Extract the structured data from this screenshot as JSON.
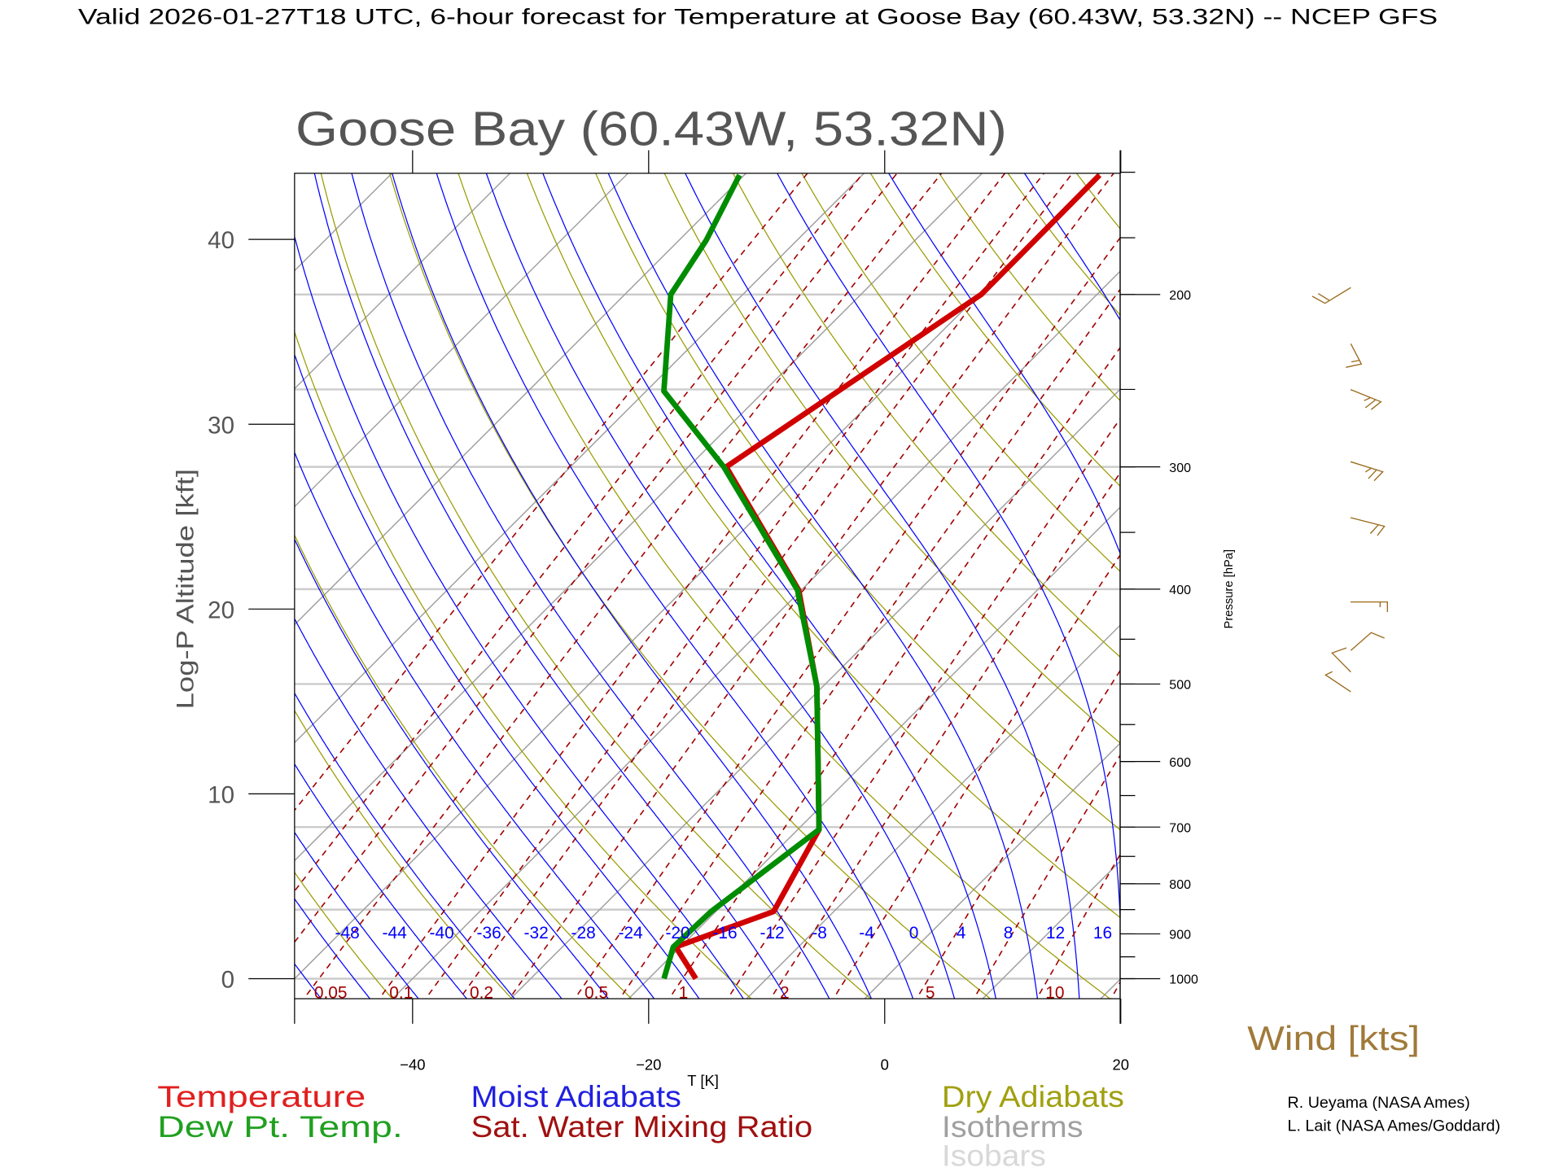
{
  "header": {
    "title": "Valid 2026-01-27T18 UTC, 6-hour forecast for Temperature at Goose Bay (60.43W, 53.32N) -- NCEP GFS"
  },
  "chart_data": {
    "type": "line",
    "subtype": "skew-T log-P diagram",
    "title": "Goose Bay (60.43W, 53.32N)",
    "xlabel": "T [K]",
    "ylabel": "Log-P Altitude [kft]",
    "y2label": "Pressure [hPa]",
    "xlim": [
      -50,
      20
    ],
    "ylim_kft": [
      -1.1,
      43.6
    ],
    "x_ticks": [
      "-40",
      "-20",
      "0",
      "20"
    ],
    "x_tick_values": [
      -40,
      -20,
      0,
      20
    ],
    "y_ticks": [
      "0",
      "10",
      "20",
      "30",
      "40"
    ],
    "y_tick_values": [
      0,
      10,
      20,
      30,
      40
    ],
    "pressure_ticks": [
      "1000",
      "900",
      "800",
      "700",
      "600",
      "500",
      "400",
      "300",
      "200"
    ],
    "pressure_tick_values": [
      1000,
      900,
      800,
      700,
      600,
      500,
      400,
      300,
      200
    ],
    "isobar_lines_hPa": [
      1000,
      850,
      700,
      500,
      400,
      300,
      250,
      200
    ],
    "moist_adiabat_labels": [
      "-48",
      "-44",
      "-40",
      "-36",
      "-32",
      "-28",
      "-24",
      "-20",
      "-16",
      "-12",
      "-8",
      "-4",
      "0",
      "4",
      "8",
      "12",
      "16"
    ],
    "moist_adiabat_values": [
      -48,
      -44,
      -40,
      -36,
      -32,
      -28,
      -24,
      -20,
      -16,
      -12,
      -8,
      -4,
      0,
      4,
      8,
      12,
      16
    ],
    "mixing_ratio_labels": [
      "0.05",
      "0.1",
      "0.2",
      "0.5",
      "1",
      "2",
      "5",
      "10"
    ],
    "mixing_ratio_values": [
      0.05,
      0.1,
      0.2,
      0.5,
      1,
      2,
      5,
      10
    ],
    "series": [
      {
        "name": "Temperature",
        "color": "#d00000",
        "pressure_hPa": [
          1000,
          928,
          854,
          704,
          503,
          401,
          300,
          200,
          151
        ],
        "temperature_C": [
          -16.0,
          -20.4,
          -15.1,
          -18.2,
          -30.5,
          -40.2,
          -56.8,
          -49.8,
          -49.9
        ]
      },
      {
        "name": "Dew Pt. Temp.",
        "color": "#008c00",
        "pressure_hPa": [
          1000,
          928,
          854,
          704,
          503,
          401,
          300,
          251,
          200,
          176,
          151
        ],
        "temperature_C": [
          -18.7,
          -20.6,
          -20.4,
          -18.2,
          -30.5,
          -40.3,
          -57.0,
          -68.5,
          -76.1,
          -77.7,
          -80.4
        ]
      }
    ],
    "legend": {
      "temperature": "Temperature",
      "dewpoint": "Dew Pt. Temp.",
      "moist": "Moist Adiabats",
      "mixing": "Sat. Water Mixing Ratio",
      "dry": "Dry Adiabats",
      "isotherms": "Isotherms",
      "isobars": "Isobars"
    },
    "colors": {
      "moist": "#0000ff",
      "mixing": "#a00000",
      "dry": "#9a9a00",
      "isotherm": "#a0a0a0",
      "isobar": "#cccccc",
      "wind": "#9a6a1a"
    },
    "wind_label": "Wind [kts]"
  },
  "credits": {
    "line1": "R. Ueyama (NASA Ames)",
    "line2": "L. Lait (NASA Ames/Goddard)"
  }
}
